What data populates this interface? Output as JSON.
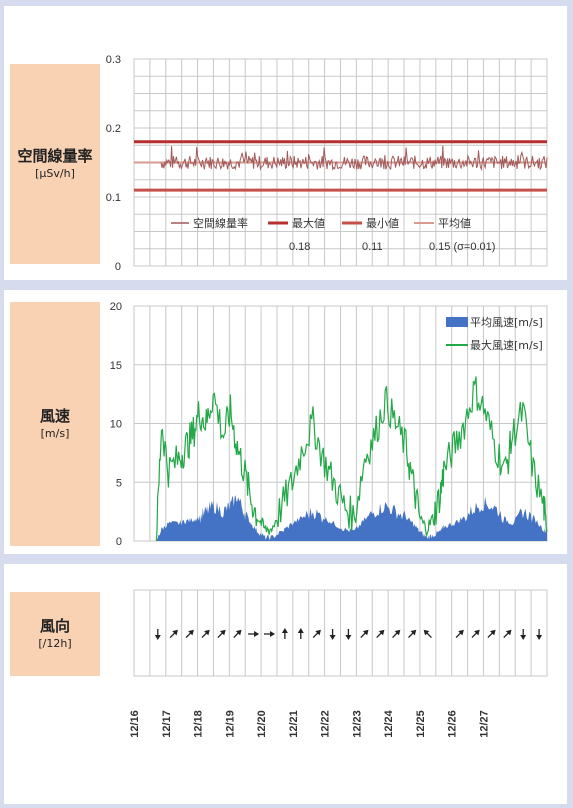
{
  "colors": {
    "page_bg": "#d6dced",
    "label_bg": "#f9d2b4",
    "grid": "#c8c8c8",
    "rad_line": "#a25a5a",
    "max_line": "#b3302e",
    "min_line": "#c8504a",
    "avg_line": "#d99a90",
    "avg_wind": "#4472c4",
    "max_wind": "#22a846"
  },
  "radiation": {
    "label": "空間線量率",
    "unit": "[μSv/h]",
    "legend": {
      "series": "空間線量率",
      "max_label": "最大値",
      "min_label": "最小値",
      "avg_label": "平均値",
      "max_value": "0.18",
      "min_value": "0.11",
      "avg_value": "0.15 (σ=0.01)"
    }
  },
  "wind": {
    "label": "風速",
    "unit": "[m/s]",
    "legend": {
      "avg_label": "平均風速[m/s]",
      "max_label": "最大風速[m/s]"
    }
  },
  "direction": {
    "label": "風向",
    "unit": "[/12h]",
    "dates": [
      "12/16",
      "12/17",
      "12/18",
      "12/19",
      "12/20",
      "12/21",
      "12/22",
      "12/23",
      "12/24",
      "12/25",
      "12/26",
      "12/27"
    ],
    "arrows": [
      {
        "slot": 1,
        "dir": "S"
      },
      {
        "slot": 2,
        "dir": "NE"
      },
      {
        "slot": 3,
        "dir": "NE"
      },
      {
        "slot": 4,
        "dir": "NE"
      },
      {
        "slot": 5,
        "dir": "NE"
      },
      {
        "slot": 6,
        "dir": "NE"
      },
      {
        "slot": 7,
        "dir": "E"
      },
      {
        "slot": 8,
        "dir": "E"
      },
      {
        "slot": 9,
        "dir": "N"
      },
      {
        "slot": 10,
        "dir": "N"
      },
      {
        "slot": 11,
        "dir": "NE"
      },
      {
        "slot": 12,
        "dir": "S"
      },
      {
        "slot": 13,
        "dir": "S"
      },
      {
        "slot": 14,
        "dir": "NE"
      },
      {
        "slot": 15,
        "dir": "NE"
      },
      {
        "slot": 16,
        "dir": "NE"
      },
      {
        "slot": 17,
        "dir": "NE"
      },
      {
        "slot": 18,
        "dir": "NW"
      },
      {
        "slot": 20,
        "dir": "NE"
      },
      {
        "slot": 21,
        "dir": "NE"
      },
      {
        "slot": 22,
        "dir": "NE"
      },
      {
        "slot": 23,
        "dir": "NE"
      },
      {
        "slot": 24,
        "dir": "S"
      },
      {
        "slot": 25,
        "dir": "S"
      }
    ]
  },
  "chart_data": [
    {
      "type": "line",
      "title": "空間線量率",
      "ylabel": "[μSv/h]",
      "ylim": [
        0,
        0.3
      ],
      "yticks": [
        "0",
        "0.1",
        "0.2",
        "0.3"
      ],
      "grid": true,
      "legend_position": "bottom",
      "series": [
        {
          "name": "空間線量率",
          "approx_level": 0.15,
          "approx_range": [
            0.14,
            0.16
          ]
        },
        {
          "name": "最大値",
          "value": 0.18
        },
        {
          "name": "最小値",
          "value": 0.11
        },
        {
          "name": "平均値",
          "value": 0.15
        }
      ]
    },
    {
      "type": "area",
      "title": "風速",
      "ylabel": "[m/s]",
      "ylim": [
        0,
        20
      ],
      "yticks": [
        "0",
        "5",
        "10",
        "15",
        "20"
      ],
      "grid": true,
      "legend_position": "top-right",
      "x_days": [
        "12/16",
        "12/17",
        "12/18",
        "12/19",
        "12/20",
        "12/21",
        "12/22",
        "12/23",
        "12/24",
        "12/25",
        "12/26",
        "12/27"
      ],
      "series": [
        {
          "name": "平均風速[m/s]",
          "t": [
            0.65,
            0.8,
            1.0,
            1.3,
            1.5,
            1.7,
            1.9,
            2.1,
            2.3,
            2.6,
            2.8,
            3.0,
            3.2,
            3.4,
            3.6,
            3.8,
            4.0,
            4.3,
            4.6,
            4.9,
            5.2,
            5.5,
            5.8,
            6.1,
            6.4,
            6.7,
            7.0,
            7.3,
            7.6,
            7.9,
            8.1,
            8.3,
            8.5,
            8.7,
            8.9,
            9.0,
            9.3,
            9.6,
            9.9,
            10.2,
            10.5,
            10.8,
            11.0,
            11.3,
            11.6,
            11.9,
            12.0
          ],
          "values": [
            0,
            1.0,
            1.5,
            1.5,
            1.7,
            1.8,
            2.0,
            2.5,
            3.0,
            2.5,
            3.0,
            3.8,
            2.5,
            1.5,
            0.8,
            0.3,
            0.3,
            0.8,
            1.5,
            2.0,
            2.5,
            2.0,
            1.5,
            1.0,
            0.8,
            1.8,
            2.5,
            3.0,
            2.5,
            2.0,
            1.5,
            0.8,
            0.3,
            0.5,
            0.8,
            1.2,
            1.5,
            2.0,
            2.8,
            3.2,
            2.8,
            1.8,
            1.5,
            2.5,
            2.0,
            1.0,
            0.8
          ]
        },
        {
          "name": "最大風速[m/s]",
          "t": [
            0.65,
            0.8,
            1.0,
            1.3,
            1.5,
            1.7,
            1.9,
            2.1,
            2.3,
            2.6,
            2.8,
            3.0,
            3.2,
            3.4,
            3.6,
            3.8,
            4.0,
            4.3,
            4.6,
            4.9,
            5.2,
            5.5,
            5.8,
            6.1,
            6.4,
            6.7,
            7.0,
            7.3,
            7.6,
            7.9,
            8.1,
            8.3,
            8.5,
            8.7,
            8.9,
            9.0,
            9.3,
            9.6,
            9.9,
            10.2,
            10.5,
            10.8,
            11.0,
            11.3,
            11.6,
            11.9,
            12.0
          ],
          "values": [
            0,
            10.0,
            6.0,
            7.0,
            8.0,
            9.0,
            11.0,
            10.0,
            12.5,
            9.0,
            11.0,
            8.0,
            6.0,
            3.5,
            2.0,
            1.0,
            1.0,
            3.0,
            5.0,
            8.0,
            10.0,
            7.0,
            5.0,
            3.0,
            2.0,
            7.0,
            9.0,
            12.0,
            10.0,
            8.0,
            5.0,
            2.0,
            1.0,
            2.0,
            4.0,
            6.0,
            8.0,
            10.0,
            13.0,
            11.0,
            8.0,
            6.0,
            9.0,
            11.0,
            6.0,
            3.0,
            1.0
          ]
        }
      ]
    }
  ]
}
